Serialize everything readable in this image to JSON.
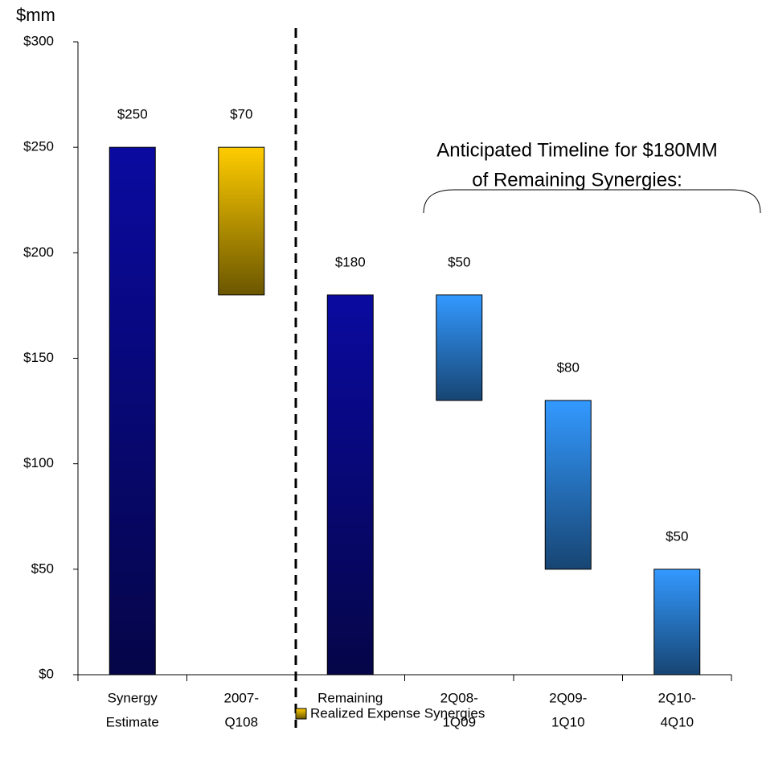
{
  "chart_data": {
    "type": "waterfall",
    "y_label": "$mm",
    "categories": [
      [
        "Synergy",
        "Estimate"
      ],
      [
        "2007-",
        "Q108"
      ],
      [
        "Remaining"
      ],
      [
        "2Q08-",
        "1Q09"
      ],
      [
        "2Q09-",
        "1Q10"
      ],
      [
        "2Q10-",
        "4Q10"
      ]
    ],
    "measure": [
      "total",
      "decrease",
      "total",
      "decrease",
      "decrease",
      "decrease"
    ],
    "values": [
      250,
      70,
      180,
      50,
      80,
      50
    ],
    "value_labels": [
      "$250",
      "$70",
      "$180",
      "$50",
      "$80",
      "$50"
    ],
    "colors": [
      "#0a0aa0",
      "#ffcc00",
      "#0a0aa0",
      "#3399ff",
      "#3399ff",
      "#3399ff"
    ],
    "ylim": [
      0,
      300
    ],
    "yticks": [
      {
        "value": 0,
        "label": "$0"
      },
      {
        "value": 50,
        "label": "$50"
      },
      {
        "value": 100,
        "label": "$100"
      },
      {
        "value": 150,
        "label": "$150"
      },
      {
        "value": 200,
        "label": "$200"
      },
      {
        "value": 250,
        "label": "$250"
      },
      {
        "value": 300,
        "label": "$300"
      }
    ],
    "annotation": [
      "Anticipated Timeline for $180MM",
      "of Remaining Synergies:"
    ],
    "legend": {
      "label": "Realized Expense Synergies",
      "color": "#ffcc00"
    }
  }
}
